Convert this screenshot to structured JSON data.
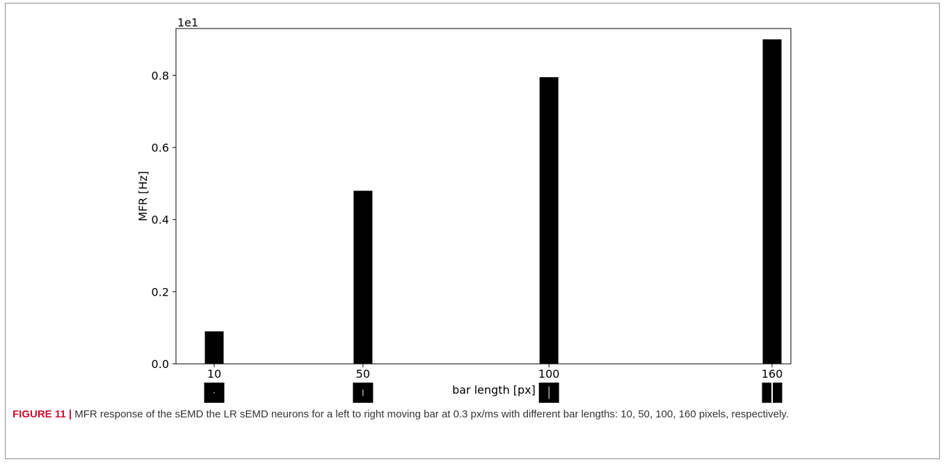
{
  "chart_data": {
    "type": "bar",
    "categories": [
      "10",
      "50",
      "100",
      "160"
    ],
    "values": [
      0.09,
      0.48,
      0.795,
      0.9
    ],
    "xlabel": "bar length [px]",
    "ylabel": "MFR [Hz]",
    "ylim": [
      0,
      0.93
    ],
    "yticks": [
      "0.0",
      "0.2",
      "0.4",
      "0.6",
      "0.8"
    ],
    "y_offset_label": "1e1",
    "bar_color": "#000000",
    "grid": false,
    "legend": "none"
  },
  "caption": {
    "label": "FIGURE 11 |",
    "text": " MFR response of the sEMD the LR sEMD neurons for a left to right moving bar at 0.3 px/ms with different bar lengths: 10, 50, 100, 160 pixels, respectively."
  }
}
